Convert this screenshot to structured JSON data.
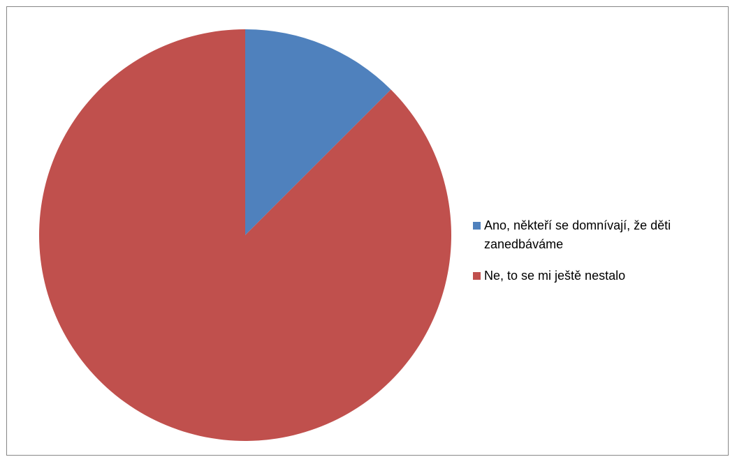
{
  "chart_data": {
    "type": "pie",
    "title": "",
    "slices": [
      {
        "label": "Ano, někteří se domnívají, že děti zanedbáváme",
        "value": 12.5,
        "color": "#4F81BD"
      },
      {
        "label": "Ne, to se mi ještě nestalo",
        "value": 87.5,
        "color": "#C0504D"
      }
    ],
    "start_angle_deg": 0,
    "direction": "clockwise",
    "legend_position": "right"
  }
}
